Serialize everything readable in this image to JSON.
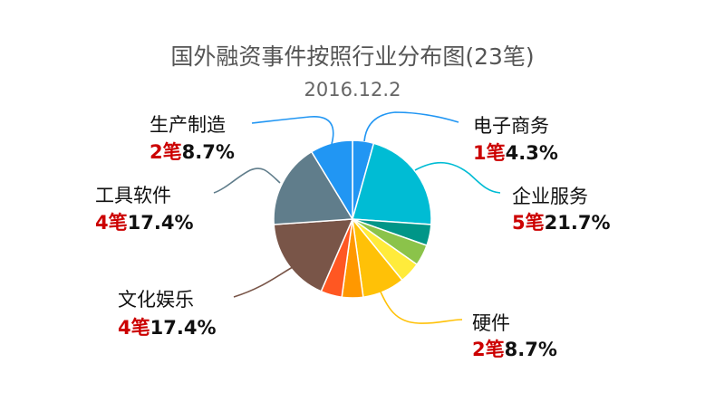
{
  "chart_data": {
    "type": "pie",
    "title": "国外融资事件按照行业分布图(23笔)",
    "subtitle": "2016.12.2",
    "count_color": "#cc0000",
    "labeled_slices": [
      {
        "name": "电子商务",
        "count_text": "1笔",
        "percent_text": "4.3%",
        "value": 1,
        "color": "#2196f3"
      },
      {
        "name": "企业服务",
        "count_text": "5笔",
        "percent_text": "21.7%",
        "value": 5,
        "color": "#00bcd4"
      },
      {
        "name": "硬件",
        "count_text": "2笔",
        "percent_text": "8.7%",
        "value": 2,
        "color": "#ffc107"
      },
      {
        "name": "文化娱乐",
        "count_text": "4笔",
        "percent_text": "17.4%",
        "value": 4,
        "color": "#795548"
      },
      {
        "name": "工具软件",
        "count_text": "4笔",
        "percent_text": "17.4%",
        "value": 4,
        "color": "#607d8b"
      },
      {
        "name": "生产制造",
        "count_text": "2笔",
        "percent_text": "8.7%",
        "value": 2,
        "color": "#2196f3"
      }
    ],
    "slices_clockwise_from_top": [
      {
        "value": 1,
        "color": "#2196f3"
      },
      {
        "value": 5,
        "color": "#00bcd4"
      },
      {
        "value": 1,
        "color": "#009688"
      },
      {
        "value": 1,
        "color": "#8bc34a"
      },
      {
        "value": 1,
        "color": "#ffeb3b"
      },
      {
        "value": 2,
        "color": "#ffc107"
      },
      {
        "value": 1,
        "color": "#ff9800"
      },
      {
        "value": 1,
        "color": "#ff5722"
      },
      {
        "value": 4,
        "color": "#795548"
      },
      {
        "value": 4,
        "color": "#607d8b"
      },
      {
        "value": 2,
        "color": "#2196f3"
      }
    ]
  }
}
